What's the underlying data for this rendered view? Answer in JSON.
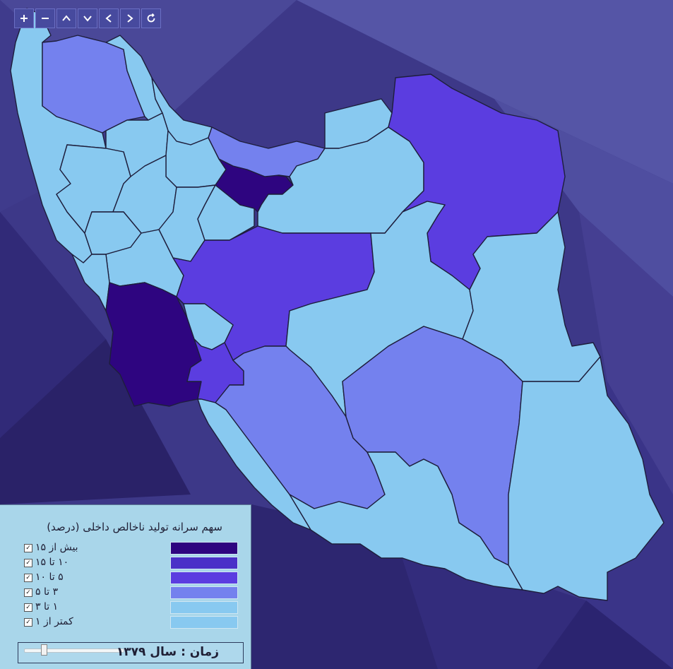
{
  "colors": {
    "cat1": "#2e0580",
    "cat2": "#4a30c8",
    "cat3": "#5b3de0",
    "cat4": "#7481ee",
    "cat5": "#88c9f0",
    "cat6": "#88c9f0"
  },
  "map": {
    "provinces": [
      {
        "key": "tehran",
        "cat": 1
      },
      {
        "key": "khuzestan",
        "cat": 1
      },
      {
        "key": "isfahan",
        "cat": 3
      },
      {
        "key": "khorasan",
        "cat": 3
      },
      {
        "key": "kohgiluyeh",
        "cat": 3
      },
      {
        "key": "east_azerbaijan",
        "cat": 4
      },
      {
        "key": "mazandaran",
        "cat": 4
      },
      {
        "key": "fars",
        "cat": 4
      },
      {
        "key": "kerman",
        "cat": 4
      },
      {
        "key": "west_azerbaijan",
        "cat": 5
      },
      {
        "key": "ardabil",
        "cat": 5
      },
      {
        "key": "gilan",
        "cat": 5
      },
      {
        "key": "zanjan",
        "cat": 5
      },
      {
        "key": "qazvin",
        "cat": 5
      },
      {
        "key": "kurdistan",
        "cat": 5
      },
      {
        "key": "hamadan",
        "cat": 5
      },
      {
        "key": "kermanshah",
        "cat": 5
      },
      {
        "key": "markazi",
        "cat": 5
      },
      {
        "key": "qom",
        "cat": 5
      },
      {
        "key": "semnan",
        "cat": 5
      },
      {
        "key": "golestan",
        "cat": 5
      },
      {
        "key": "lorestan",
        "cat": 5
      },
      {
        "key": "ilam",
        "cat": 5
      },
      {
        "key": "chaharmahal",
        "cat": 5
      },
      {
        "key": "yazd",
        "cat": 5
      },
      {
        "key": "south_khorasan",
        "cat": 5
      },
      {
        "key": "sistan",
        "cat": 5
      },
      {
        "key": "hormozgan",
        "cat": 5
      },
      {
        "key": "bushehr",
        "cat": 5
      }
    ]
  },
  "toolbar": {
    "buttons": [
      {
        "name": "zoom-in-button",
        "icon": "plus-icon"
      },
      {
        "name": "zoom-out-button",
        "icon": "minus-icon"
      },
      {
        "name": "pan-up-button",
        "icon": "chevron-up-icon"
      },
      {
        "name": "pan-down-button",
        "icon": "chevron-down-icon"
      },
      {
        "name": "pan-left-button",
        "icon": "chevron-left-icon"
      },
      {
        "name": "pan-right-button",
        "icon": "chevron-right-icon"
      },
      {
        "name": "reset-button",
        "icon": "refresh-icon"
      }
    ]
  },
  "legend": {
    "title": "سهم سرانه تولید ناخالص داخلی (درصد)",
    "items": [
      {
        "label": "بیش از ۱۵",
        "color": "#2e0580",
        "checked": true
      },
      {
        "label": "۱۰ تا ۱۵",
        "color": "#4a30c8",
        "checked": true
      },
      {
        "label": "۵ تا ۱۰",
        "color": "#5b3de0",
        "checked": true
      },
      {
        "label": "۳ تا ۵",
        "color": "#7481ee",
        "checked": true
      },
      {
        "label": "۱ تا ۳",
        "color": "#88c9f0",
        "checked": true
      },
      {
        "label": "کمتر از ۱",
        "color": "#88c9f0",
        "checked": true
      }
    ],
    "time_label": "زمان : سال ۱۳۷۹",
    "slider_value": 0.2
  }
}
